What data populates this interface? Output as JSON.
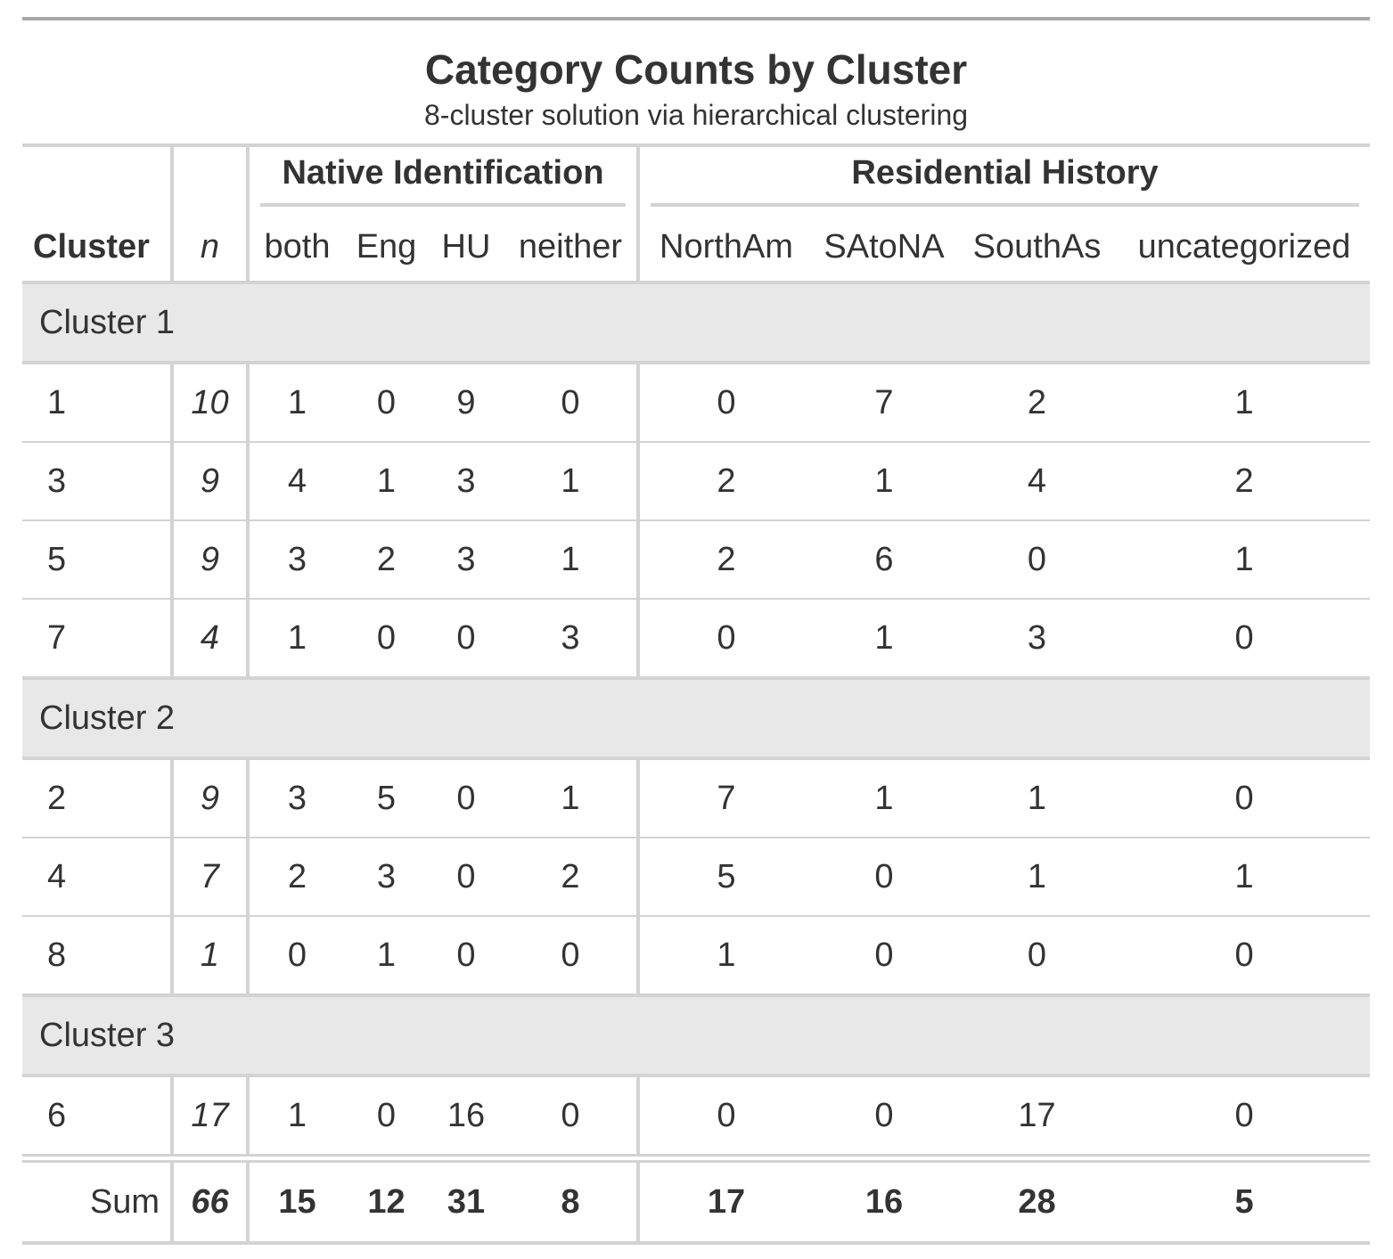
{
  "title": "Category Counts by Cluster",
  "subtitle": "8-cluster solution via hierarchical clustering",
  "spanners": {
    "native": "Native Identification",
    "residential": "Residential History"
  },
  "columns": {
    "cluster": "Cluster",
    "n": "n",
    "both": "both",
    "eng": "Eng",
    "hu": "HU",
    "neither": "neither",
    "northam": "NorthAm",
    "satona": "SAtoNA",
    "southas": "SouthAs",
    "uncategorized": "uncategorized"
  },
  "groups": [
    {
      "label": "Cluster 1",
      "rows": [
        {
          "cluster": "1",
          "n": "10",
          "both": "1",
          "eng": "0",
          "hu": "9",
          "neither": "0",
          "northam": "0",
          "satona": "7",
          "southas": "2",
          "uncategorized": "1"
        },
        {
          "cluster": "3",
          "n": "9",
          "both": "4",
          "eng": "1",
          "hu": "3",
          "neither": "1",
          "northam": "2",
          "satona": "1",
          "southas": "4",
          "uncategorized": "2"
        },
        {
          "cluster": "5",
          "n": "9",
          "both": "3",
          "eng": "2",
          "hu": "3",
          "neither": "1",
          "northam": "2",
          "satona": "6",
          "southas": "0",
          "uncategorized": "1"
        },
        {
          "cluster": "7",
          "n": "4",
          "both": "1",
          "eng": "0",
          "hu": "0",
          "neither": "3",
          "northam": "0",
          "satona": "1",
          "southas": "3",
          "uncategorized": "0"
        }
      ]
    },
    {
      "label": "Cluster 2",
      "rows": [
        {
          "cluster": "2",
          "n": "9",
          "both": "3",
          "eng": "5",
          "hu": "0",
          "neither": "1",
          "northam": "7",
          "satona": "1",
          "southas": "1",
          "uncategorized": "0"
        },
        {
          "cluster": "4",
          "n": "7",
          "both": "2",
          "eng": "3",
          "hu": "0",
          "neither": "2",
          "northam": "5",
          "satona": "0",
          "southas": "1",
          "uncategorized": "1"
        },
        {
          "cluster": "8",
          "n": "1",
          "both": "0",
          "eng": "1",
          "hu": "0",
          "neither": "0",
          "northam": "1",
          "satona": "0",
          "southas": "0",
          "uncategorized": "0"
        }
      ]
    },
    {
      "label": "Cluster 3",
      "rows": [
        {
          "cluster": "6",
          "n": "17",
          "both": "1",
          "eng": "0",
          "hu": "16",
          "neither": "0",
          "northam": "0",
          "satona": "0",
          "southas": "17",
          "uncategorized": "0"
        }
      ]
    }
  ],
  "summary": {
    "label": "Sum",
    "n": "66",
    "both": "15",
    "eng": "12",
    "hu": "31",
    "neither": "8",
    "northam": "17",
    "satona": "16",
    "southas": "28",
    "uncategorized": "5"
  }
}
